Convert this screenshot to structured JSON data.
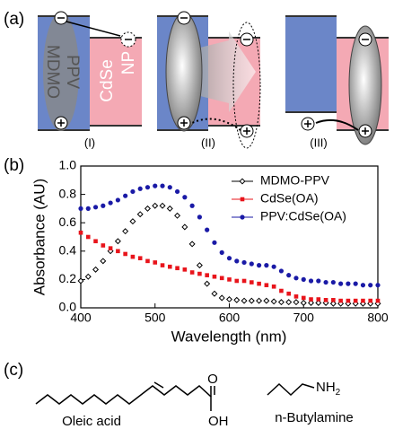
{
  "panel_a": {
    "label": "(a)",
    "polymer": [
      "MDMO",
      "PPV"
    ],
    "particle": [
      "CdSe",
      "NP"
    ],
    "cases": [
      "(I)",
      "(II)",
      "(III)"
    ]
  },
  "chart_data": {
    "type": "scatter",
    "label": "(b)",
    "xlabel": "Wavelength (nm)",
    "ylabel": "Absorbance (AU)",
    "x": [
      400,
      410,
      420,
      430,
      440,
      450,
      460,
      470,
      480,
      490,
      500,
      510,
      520,
      530,
      540,
      550,
      560,
      570,
      580,
      590,
      600,
      610,
      620,
      630,
      640,
      650,
      660,
      670,
      680,
      690,
      700,
      710,
      720,
      730,
      740,
      750,
      760,
      770,
      780,
      790,
      800
    ],
    "series": [
      {
        "name": "MDMO-PPV",
        "color": "#000000",
        "marker": "diamond",
        "values": [
          0.19,
          0.22,
          0.27,
          0.33,
          0.4,
          0.47,
          0.54,
          0.61,
          0.66,
          0.7,
          0.72,
          0.72,
          0.7,
          0.65,
          0.57,
          0.45,
          0.3,
          0.17,
          0.1,
          0.07,
          0.06,
          0.055,
          0.05,
          0.05,
          0.05,
          0.05,
          0.045,
          0.04,
          0.04,
          0.04,
          0.035,
          0.035,
          0.035,
          0.035,
          0.03,
          0.03,
          0.03,
          0.03,
          0.03,
          0.03,
          0.03
        ]
      },
      {
        "name": "CdSe(OA)",
        "color": "#e8141b",
        "marker": "square",
        "values": [
          0.53,
          0.5,
          0.47,
          0.44,
          0.42,
          0.4,
          0.38,
          0.36,
          0.35,
          0.33,
          0.32,
          0.3,
          0.29,
          0.28,
          0.27,
          0.25,
          0.24,
          0.23,
          0.22,
          0.21,
          0.2,
          0.19,
          0.19,
          0.18,
          0.17,
          0.16,
          0.15,
          0.12,
          0.1,
          0.08,
          0.07,
          0.06,
          0.06,
          0.055,
          0.055,
          0.05,
          0.05,
          0.05,
          0.05,
          0.05,
          0.05
        ]
      },
      {
        "name": "PPV:CdSe(OA)",
        "color": "#1a1aa6",
        "marker": "circle",
        "values": [
          0.7,
          0.7,
          0.71,
          0.72,
          0.74,
          0.76,
          0.79,
          0.82,
          0.84,
          0.85,
          0.86,
          0.86,
          0.85,
          0.82,
          0.78,
          0.72,
          0.64,
          0.55,
          0.46,
          0.39,
          0.35,
          0.33,
          0.32,
          0.31,
          0.3,
          0.3,
          0.29,
          0.26,
          0.23,
          0.21,
          0.2,
          0.19,
          0.19,
          0.18,
          0.18,
          0.17,
          0.17,
          0.17,
          0.16,
          0.16,
          0.16
        ]
      }
    ],
    "xlim": [
      400,
      800
    ],
    "xticks": [
      400,
      500,
      600,
      700,
      800
    ],
    "ylim": [
      0,
      1
    ],
    "yticks": [
      {
        "value": 0,
        "label": "0.0"
      },
      0.2,
      0.4,
      0.6,
      0.8,
      {
        "value": 1,
        "label": "1.0"
      }
    ],
    "legend": "upper right"
  },
  "panel_c": {
    "label": "(c)",
    "oleic_acid": "Oleic acid",
    "carbonyl": "O",
    "hydroxyl": "OH",
    "butylamine": "n-Butylamine",
    "amine": "NH",
    "amine_sub": "2"
  }
}
